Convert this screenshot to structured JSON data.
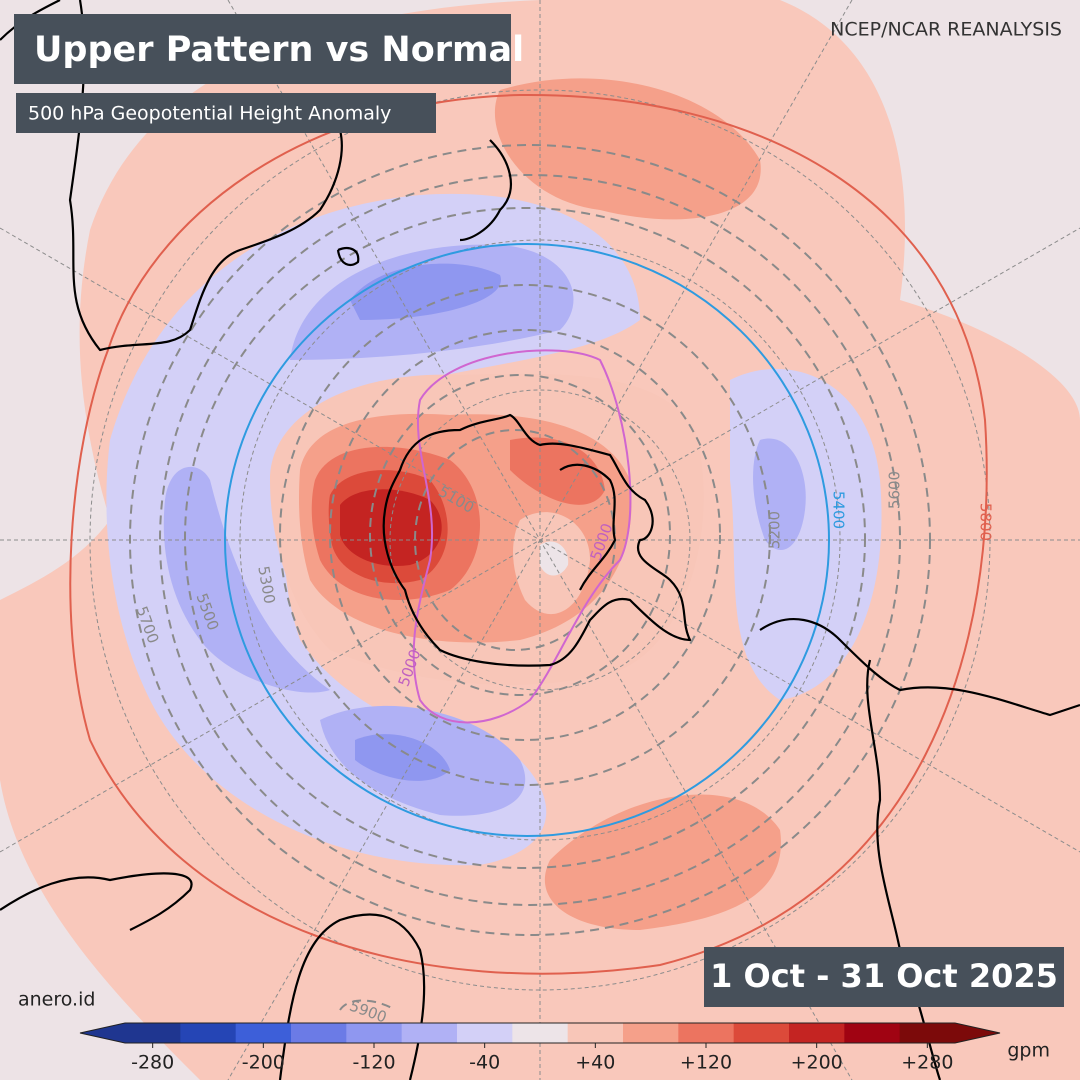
{
  "header": {
    "title": "Upper Pattern vs Normal",
    "subtitle": "500 hPa Geopotential Height Anomaly",
    "source": "NCEP/NCAR REANALYSIS"
  },
  "period": "1 Oct - 31 Oct 2025",
  "credit": "anero.id",
  "contour_labels": [
    5100,
    5000,
    5000,
    5200,
    5300,
    5400,
    5500,
    5600,
    5700,
    5800,
    5900
  ],
  "colorbar": {
    "xlim": [
      -300,
      300
    ],
    "colors": [
      "#1f3690",
      "#2545b5",
      "#3d5fd9",
      "#6b7be6",
      "#8f97f0",
      "#b0b1f5",
      "#d3d0f7",
      "#ede4e8",
      "#f8c6b8",
      "#f5a08a",
      "#ec7460",
      "#dc4a3a",
      "#c42422",
      "#a00312",
      "#7c0a0a"
    ],
    "ticks": [
      -280,
      -200,
      -120,
      {
        "value": -40,
        "label": "-40"
      },
      {
        "value": 40,
        "label": "+40"
      },
      {
        "value": 120,
        "label": "+120"
      },
      {
        "value": 200,
        "label": "+200"
      },
      {
        "value": 280,
        "label": "+280"
      }
    ],
    "unit": "gpm"
  }
}
